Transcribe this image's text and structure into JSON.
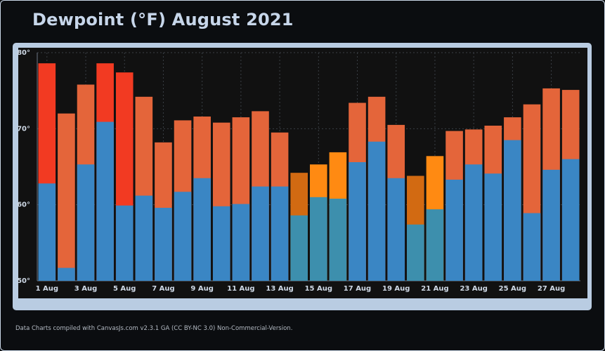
{
  "title": "Dewpoint (°F) August 2021",
  "footer": "Data Charts compiled with CanvasJs.com v2.3.1 GA (CC BY-NC 3.0) Non-Commercial-Version.",
  "colors": {
    "low_blue": "#3a86c4",
    "low_teal": "#3d8fad",
    "high_red": "#f23a22",
    "high_orange_red": "#e4653a",
    "high_dark_orange": "#d26a12",
    "high_orange": "#ff8a12",
    "grid": "#3a3f45",
    "plot_bg": "#111111",
    "axis_text": "#cfd9e6"
  },
  "chart_data": {
    "type": "bar",
    "title": "Dewpoint (°F) August 2021",
    "ylim": [
      50,
      80
    ],
    "yticks": [
      50,
      60,
      70,
      80
    ],
    "ytick_labels": [
      "50°",
      "60°",
      "70°",
      "80°"
    ],
    "categories": [
      "1 Aug",
      "2 Aug",
      "3 Aug",
      "4 Aug",
      "5 Aug",
      "6 Aug",
      "7 Aug",
      "8 Aug",
      "9 Aug",
      "10 Aug",
      "11 Aug",
      "12 Aug",
      "13 Aug",
      "14 Aug",
      "15 Aug",
      "16 Aug",
      "17 Aug",
      "18 Aug",
      "19 Aug",
      "20 Aug",
      "21 Aug",
      "22 Aug",
      "23 Aug",
      "24 Aug",
      "25 Aug",
      "26 Aug",
      "27 Aug",
      "28 Aug"
    ],
    "xtick_labels": [
      "1 Aug",
      "3 Aug",
      "5 Aug",
      "7 Aug",
      "9 Aug",
      "11 Aug",
      "13 Aug",
      "15 Aug",
      "17 Aug",
      "19 Aug",
      "21 Aug",
      "23 Aug",
      "25 Aug",
      "27 Aug"
    ],
    "series": [
      {
        "values": [
          62.8,
          51.7,
          65.3,
          70.9,
          59.9,
          61.2,
          59.6,
          61.7,
          63.5,
          59.8,
          60.1,
          62.4,
          62.4,
          58.6,
          61.0,
          60.8,
          65.6,
          68.3,
          63.5,
          57.4,
          59.4,
          63.3,
          65.3,
          64.1,
          68.5,
          58.9,
          64.6,
          66.0
        ],
        "colors": [
          "#3a86c4",
          "#3a86c4",
          "#3a86c4",
          "#3a86c4",
          "#3a86c4",
          "#3a86c4",
          "#3a86c4",
          "#3a86c4",
          "#3a86c4",
          "#3a86c4",
          "#3a86c4",
          "#3a86c4",
          "#3a86c4",
          "#3d8fad",
          "#3d8fad",
          "#3d8fad",
          "#3a86c4",
          "#3a86c4",
          "#3a86c4",
          "#3d8fad",
          "#3d8fad",
          "#3a86c4",
          "#3a86c4",
          "#3a86c4",
          "#3a86c4",
          "#3a86c4",
          "#3a86c4",
          "#3a86c4"
        ]
      },
      {
        "values": [
          78.6,
          72.0,
          75.8,
          78.6,
          77.4,
          74.2,
          68.2,
          71.1,
          71.6,
          70.8,
          71.5,
          72.3,
          69.5,
          64.2,
          65.3,
          66.9,
          73.4,
          74.2,
          70.5,
          63.8,
          66.4,
          69.7,
          69.9,
          70.4,
          71.5,
          73.2,
          75.3,
          75.1
        ],
        "colors": [
          "#f23a22",
          "#e4653a",
          "#e4653a",
          "#f23a22",
          "#f23a22",
          "#e4653a",
          "#e4653a",
          "#e4653a",
          "#e4653a",
          "#e4653a",
          "#e4653a",
          "#e4653a",
          "#e4653a",
          "#d26a12",
          "#ff8a12",
          "#ff8a12",
          "#e4653a",
          "#e4653a",
          "#e4653a",
          "#d26a12",
          "#ff8a12",
          "#e4653a",
          "#e4653a",
          "#e4653a",
          "#e4653a",
          "#e4653a",
          "#e4653a",
          "#e4653a"
        ]
      }
    ],
    "grid": true
  }
}
